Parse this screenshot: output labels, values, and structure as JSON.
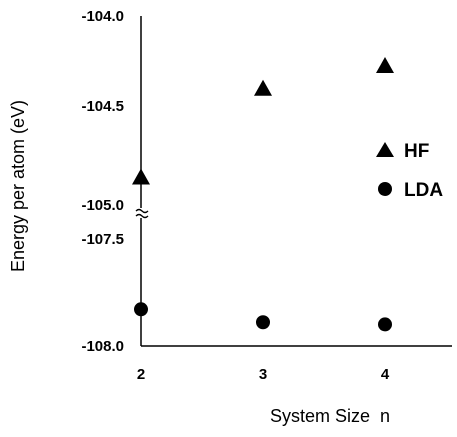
{
  "chart_data": {
    "type": "scatter",
    "xlabel": "System Size  n",
    "ylabel": "Energy per atom (eV)",
    "x_ticks": [
      "2",
      "3",
      "4"
    ],
    "y_ticks_upper": [
      "-104.0",
      "-104.5",
      "-105.0"
    ],
    "y_ticks_lower": [
      "-107.5",
      "-108.0"
    ],
    "x_range": [
      2,
      4.6
    ],
    "y_range_upper": [
      -105.0,
      -104.0
    ],
    "y_range_lower": [
      -108.0,
      -107.5
    ],
    "axis_break": "between -105.0 and -107.5",
    "legend_position": "right",
    "series": [
      {
        "name": "HF",
        "marker": "triangle",
        "x": [
          2,
          3,
          4
        ],
        "y": [
          -104.86,
          -104.39,
          -104.27
        ]
      },
      {
        "name": "LDA",
        "marker": "circle",
        "x": [
          2,
          3,
          4
        ],
        "y": [
          -107.83,
          -107.89,
          -107.9
        ]
      }
    ],
    "colors": {
      "marker": "#000000",
      "axis": "#000000"
    }
  }
}
